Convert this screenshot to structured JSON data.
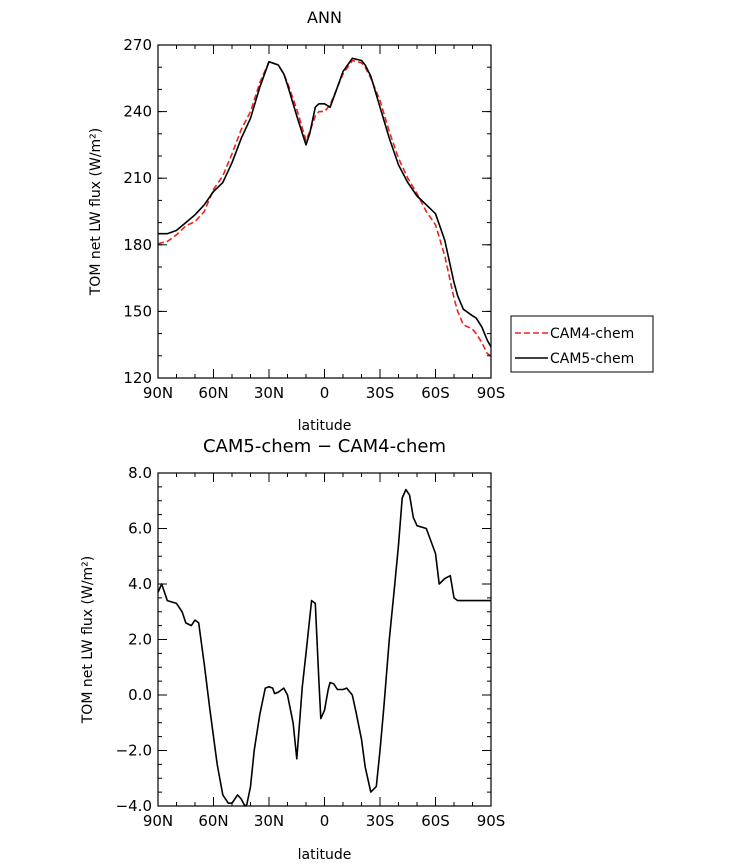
{
  "chart_data": [
    {
      "type": "line",
      "title": "ANN",
      "xlabel": "latitude",
      "ylabel": "TOM net LW flux (W/m²)",
      "x_tick_labels": [
        "90N",
        "60N",
        "30N",
        "0",
        "30S",
        "60S",
        "90S"
      ],
      "x_tick_values": [
        90,
        60,
        30,
        0,
        -30,
        -60,
        -90
      ],
      "xlim": [
        90,
        -90
      ],
      "ylim": [
        120,
        270
      ],
      "y_ticks": [
        120,
        150,
        180,
        210,
        240,
        270
      ],
      "legend_position": "right-outside",
      "series": [
        {
          "name": "CAM4-chem",
          "color": "#e8241c",
          "style": "dashed",
          "x": [
            90,
            85,
            80,
            75,
            70,
            65,
            60,
            55,
            50,
            45,
            40,
            35,
            30,
            25,
            22,
            20,
            15,
            10,
            8,
            5,
            3,
            0,
            -3,
            -5,
            -10,
            -15,
            -20,
            -22,
            -25,
            -30,
            -35,
            -40,
            -45,
            -50,
            -55,
            -60,
            -65,
            -70,
            -72,
            -75,
            -80,
            -82,
            -85,
            -88,
            -90
          ],
          "y": [
            180.5,
            181.5,
            184.5,
            188.5,
            190.5,
            195,
            205,
            211,
            221,
            232,
            240,
            253,
            262.5,
            261,
            257,
            253,
            241,
            227,
            231,
            238,
            240,
            240,
            243,
            247,
            257,
            263,
            262,
            260,
            255,
            245,
            231,
            219,
            210,
            203,
            195,
            189,
            175,
            156,
            150,
            144,
            142,
            140,
            136,
            131,
            130
          ]
        },
        {
          "name": "CAM5-chem",
          "color": "#000000",
          "style": "solid",
          "x": [
            90,
            85,
            80,
            75,
            70,
            65,
            60,
            55,
            50,
            45,
            40,
            35,
            30,
            25,
            22,
            20,
            15,
            10,
            8,
            5,
            3,
            0,
            -3,
            -5,
            -10,
            -15,
            -20,
            -22,
            -25,
            -30,
            -35,
            -40,
            -45,
            -50,
            -55,
            -60,
            -65,
            -70,
            -72,
            -75,
            -80,
            -82,
            -85,
            -88,
            -90
          ],
          "y": [
            185,
            185,
            186.5,
            190,
            193.5,
            198,
            204,
            208,
            217,
            228,
            237,
            251,
            262.5,
            261,
            257,
            252,
            238,
            225,
            230,
            242,
            243.5,
            243.5,
            242,
            246.5,
            258,
            264,
            263,
            261,
            256,
            242,
            228,
            216,
            208,
            202,
            198,
            194,
            182,
            163,
            157,
            151,
            148,
            147,
            143,
            137,
            134
          ]
        }
      ]
    },
    {
      "type": "line",
      "title": "CAM5-chem − CAM4-chem",
      "xlabel": "latitude",
      "ylabel": "TOM net LW flux (W/m²)",
      "x_tick_labels": [
        "90N",
        "60N",
        "30N",
        "0",
        "30S",
        "60S",
        "90S"
      ],
      "x_tick_values": [
        90,
        60,
        30,
        0,
        -30,
        -60,
        -90
      ],
      "xlim": [
        90,
        -90
      ],
      "ylim": [
        -4,
        8
      ],
      "y_tick_labels": [
        "−4.0",
        "−2.0",
        "0.0",
        "2.0",
        "4.0",
        "6.0",
        "8.0"
      ],
      "y_ticks": [
        -4,
        -2,
        0,
        2,
        4,
        6,
        8
      ],
      "series": [
        {
          "color": "#000000",
          "style": "solid",
          "x": [
            90,
            88,
            85,
            80,
            77,
            75,
            72,
            70,
            68,
            65,
            62,
            58,
            55,
            52,
            50,
            47,
            45,
            43,
            42,
            40,
            38,
            35,
            32,
            30,
            28,
            27,
            25,
            22,
            20,
            17,
            15,
            12,
            10,
            7,
            5,
            3,
            2,
            0,
            -2,
            -3,
            -5,
            -7,
            -10,
            -12,
            -15,
            -17,
            -20,
            -22,
            -25,
            -28,
            -30,
            -32,
            -35,
            -38,
            -40,
            -42,
            -44,
            -46,
            -48,
            -50,
            -55,
            -60,
            -62,
            -65,
            -68,
            -70,
            -72,
            -74,
            -76,
            -78,
            -80,
            -82,
            -84,
            -86,
            -88,
            -90
          ],
          "y": [
            3.7,
            4.0,
            3.4,
            3.3,
            3.0,
            2.6,
            2.5,
            2.7,
            2.6,
            1.1,
            -0.5,
            -2.5,
            -3.6,
            -3.9,
            -3.9,
            -3.6,
            -3.75,
            -4.0,
            -3.95,
            -3.3,
            -2.0,
            -0.7,
            0.25,
            0.3,
            0.25,
            0.05,
            0.1,
            0.25,
            0.0,
            -1.0,
            -2.3,
            0.3,
            1.5,
            3.4,
            3.3,
            0.5,
            -0.85,
            -0.55,
            0.2,
            0.45,
            0.4,
            0.2,
            0.2,
            0.25,
            0.0,
            -0.6,
            -1.6,
            -2.6,
            -3.5,
            -3.3,
            -2.0,
            -0.5,
            2.0,
            4.0,
            5.4,
            7.1,
            7.4,
            7.2,
            6.4,
            6.1,
            6.0,
            5.1,
            4.0,
            4.2,
            4.3,
            3.5,
            3.4,
            3.4,
            3.4,
            3.4,
            3.4,
            3.4,
            3.4,
            3.4,
            3.4,
            3.4
          ]
        }
      ]
    }
  ]
}
